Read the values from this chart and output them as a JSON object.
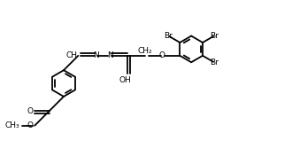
{
  "background": "#ffffff",
  "line_color": "#000000",
  "lw": 1.3,
  "fs": 6.5,
  "xlim": [
    0,
    10.5
  ],
  "ylim": [
    0,
    5.5
  ]
}
